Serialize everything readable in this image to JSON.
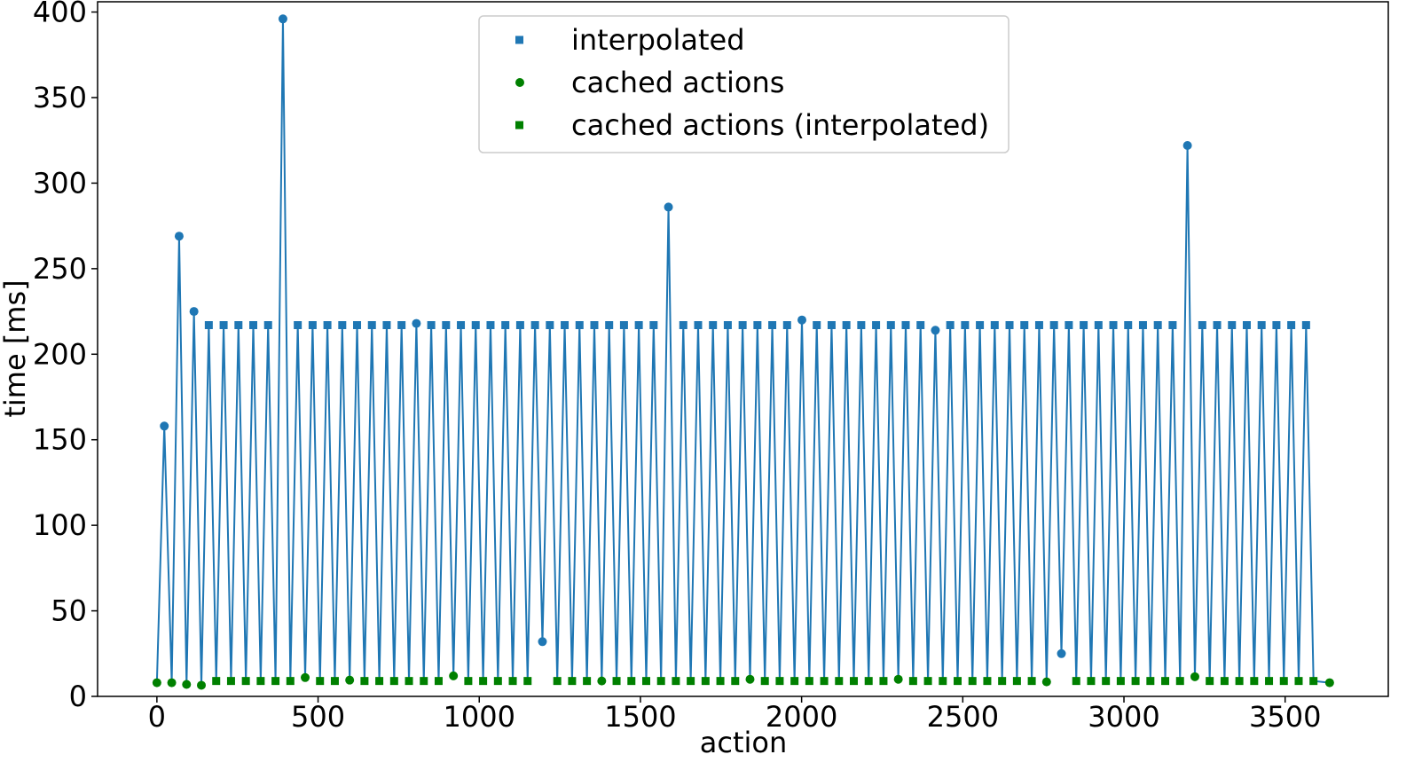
{
  "chart_data": {
    "type": "line",
    "xlabel": "action",
    "ylabel": "time [ms]",
    "xlim": [
      -184,
      3820
    ],
    "ylim": [
      0,
      406
    ],
    "xticks": [
      0,
      500,
      1000,
      1500,
      2000,
      2500,
      3000,
      3500
    ],
    "yticks": [
      0,
      50,
      100,
      150,
      200,
      250,
      300,
      350,
      400
    ],
    "grid": false,
    "legend": "upper center",
    "line": {
      "color": "#1f77b4",
      "x": [
        0,
        23,
        46,
        69,
        92,
        115,
        138,
        161,
        184,
        207,
        230,
        253,
        276,
        299,
        322,
        345,
        368,
        391,
        414,
        437,
        460,
        483,
        506,
        529,
        552,
        575,
        598,
        621,
        644,
        667,
        690,
        713,
        736,
        759,
        782,
        805,
        828,
        851,
        874,
        897,
        920,
        943,
        966,
        989,
        1012,
        1035,
        1058,
        1081,
        1104,
        1127,
        1150,
        1173,
        1196,
        1219,
        1242,
        1265,
        1288,
        1311,
        1334,
        1357,
        1380,
        1403,
        1426,
        1449,
        1472,
        1495,
        1518,
        1541,
        1564,
        1587,
        1610,
        1633,
        1656,
        1679,
        1702,
        1725,
        1748,
        1771,
        1794,
        1817,
        1840,
        1863,
        1886,
        1909,
        1932,
        1955,
        1978,
        2001,
        2024,
        2047,
        2070,
        2093,
        2116,
        2139,
        2162,
        2185,
        2208,
        2231,
        2254,
        2277,
        2300,
        2323,
        2346,
        2369,
        2392,
        2415,
        2438,
        2461,
        2484,
        2507,
        2530,
        2553,
        2576,
        2599,
        2622,
        2645,
        2668,
        2691,
        2714,
        2737,
        2760,
        2783,
        2806,
        2829,
        2852,
        2875,
        2898,
        2921,
        2944,
        2967,
        2990,
        3013,
        3036,
        3059,
        3082,
        3105,
        3128,
        3151,
        3174,
        3197,
        3220,
        3243,
        3266,
        3289,
        3312,
        3335,
        3358,
        3381,
        3404,
        3427,
        3450,
        3473,
        3496,
        3519,
        3542,
        3565,
        3588,
        3638
      ],
      "values": [
        8,
        158,
        8,
        269,
        7,
        225,
        6.5,
        217,
        9,
        217,
        9,
        217,
        9,
        217,
        9,
        217,
        9,
        396,
        9,
        217,
        11,
        217,
        9,
        217,
        9,
        217,
        9.5,
        217,
        9,
        217,
        9,
        217,
        9,
        217,
        9,
        218,
        9,
        217,
        9,
        217,
        12,
        217,
        9,
        217,
        9,
        217,
        9,
        217,
        9,
        217,
        9,
        217,
        32,
        217,
        9,
        217,
        9,
        217,
        9,
        217,
        9,
        217,
        9,
        217,
        9,
        217,
        9,
        217,
        9,
        286,
        9,
        217,
        9,
        217,
        9,
        217,
        9,
        217,
        9,
        217,
        10,
        217,
        9,
        217,
        9,
        217,
        9,
        220,
        9,
        217,
        9,
        217,
        9,
        217,
        9,
        217,
        9,
        217,
        9,
        217,
        10,
        217,
        9,
        217,
        9,
        214,
        9,
        217,
        9,
        217,
        9,
        217,
        9,
        217,
        9,
        217,
        9,
        217,
        9,
        217,
        8.5,
        217,
        25,
        217,
        9,
        217,
        9,
        217,
        9,
        217,
        9,
        217,
        9,
        217,
        9,
        217,
        9,
        217,
        9,
        322,
        11.5,
        217,
        9,
        217,
        9,
        217,
        9,
        217,
        9,
        217,
        9,
        217,
        9,
        217,
        9,
        217,
        9,
        8
      ]
    },
    "series": [
      {
        "color": "#1f77b4",
        "marker": "circle",
        "x": [
          23,
          69,
          115,
          391,
          805,
          1196,
          1587,
          2001,
          2415,
          2806,
          3197
        ],
        "values": [
          158,
          269,
          225,
          396,
          218,
          32,
          286,
          220,
          214,
          25,
          322
        ]
      },
      {
        "name": "interpolated",
        "color": "#1f77b4",
        "marker": "square",
        "x": [
          161,
          207,
          253,
          299,
          345,
          437,
          483,
          529,
          575,
          621,
          667,
          713,
          759,
          851,
          897,
          943,
          989,
          1035,
          1081,
          1127,
          1173,
          1219,
          1265,
          1311,
          1357,
          1403,
          1449,
          1495,
          1541,
          1633,
          1679,
          1725,
          1771,
          1817,
          1863,
          1909,
          1955,
          2047,
          2093,
          2139,
          2185,
          2231,
          2277,
          2323,
          2369,
          2461,
          2507,
          2553,
          2599,
          2645,
          2691,
          2737,
          2783,
          2829,
          2875,
          2921,
          2967,
          3013,
          3059,
          3105,
          3151,
          3243,
          3289,
          3335,
          3381,
          3427,
          3473,
          3519,
          3565
        ],
        "values": [
          217,
          217,
          217,
          217,
          217,
          217,
          217,
          217,
          217,
          217,
          217,
          217,
          217,
          217,
          217,
          217,
          217,
          217,
          217,
          217,
          217,
          217,
          217,
          217,
          217,
          217,
          217,
          217,
          217,
          217,
          217,
          217,
          217,
          217,
          217,
          217,
          217,
          217,
          217,
          217,
          217,
          217,
          217,
          217,
          217,
          217,
          217,
          217,
          217,
          217,
          217,
          217,
          217,
          217,
          217,
          217,
          217,
          217,
          217,
          217,
          217,
          217,
          217,
          217,
          217,
          217,
          217,
          217,
          217
        ]
      },
      {
        "name": "cached actions",
        "color": "#008000",
        "marker": "circle",
        "x": [
          0,
          46,
          92,
          138,
          460,
          598,
          920,
          1380,
          1840,
          2300,
          2760,
          3220,
          3638
        ],
        "values": [
          8,
          8,
          7,
          6.5,
          11,
          9.5,
          12,
          9,
          10,
          10,
          8.5,
          11.5,
          8
        ]
      },
      {
        "name": "cached actions (interpolated)",
        "color": "#008000",
        "marker": "square",
        "x": [
          184,
          230,
          276,
          322,
          368,
          414,
          506,
          552,
          644,
          690,
          736,
          782,
          828,
          874,
          966,
          1012,
          1058,
          1104,
          1150,
          1242,
          1288,
          1334,
          1426,
          1472,
          1518,
          1564,
          1610,
          1656,
          1702,
          1748,
          1794,
          1886,
          1932,
          1978,
          2024,
          2070,
          2116,
          2162,
          2208,
          2254,
          2346,
          2392,
          2438,
          2484,
          2530,
          2576,
          2622,
          2668,
          2714,
          2852,
          2898,
          2944,
          2990,
          3036,
          3082,
          3128,
          3174,
          3266,
          3312,
          3358,
          3404,
          3450,
          3496,
          3542,
          3588
        ],
        "values": [
          9,
          9,
          9,
          9,
          9,
          9,
          9,
          9,
          9,
          9,
          9,
          9,
          9,
          9,
          9,
          9,
          9,
          9,
          9,
          9,
          9,
          9,
          9,
          9,
          9,
          9,
          9,
          9,
          9,
          9,
          9,
          9,
          9,
          9,
          9,
          9,
          9,
          9,
          9,
          9,
          9,
          9,
          9,
          9,
          9,
          9,
          9,
          9,
          9,
          9,
          9,
          9,
          9,
          9,
          9,
          9,
          9,
          9,
          9,
          9,
          9,
          9,
          9,
          9,
          9
        ]
      }
    ]
  }
}
